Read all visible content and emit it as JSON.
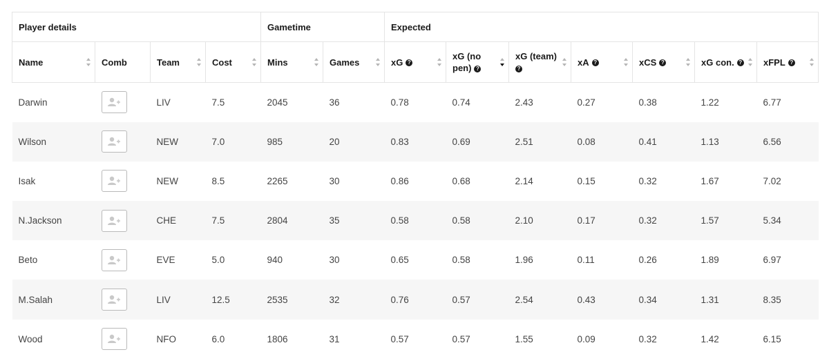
{
  "groups": {
    "player_details": "Player details",
    "gametime": "Gametime",
    "expected": "Expected"
  },
  "columns": {
    "name": "Name",
    "comb": "Comb",
    "team": "Team",
    "cost": "Cost",
    "mins": "Mins",
    "games": "Games",
    "xg": "xG",
    "xg_no_pen_line1": "xG (no",
    "xg_no_pen_line2": "pen)",
    "xg_team": "xG (team)",
    "xa": "xA",
    "xcs": "xCS",
    "xg_con": "xG con.",
    "xfpl": "xFPL"
  },
  "help_glyph": "?",
  "sorted_column": "xg_no_pen",
  "sort_direction": "descending",
  "icons": {
    "sort": "sort-arrows-icon",
    "help": "help-circle-icon",
    "comb": "add-player-icon"
  },
  "rows": [
    {
      "name": "Darwin",
      "team": "LIV",
      "cost": "7.5",
      "mins": "2045",
      "games": "36",
      "xg": "0.78",
      "xg_no_pen": "0.74",
      "xg_team": "2.43",
      "xa": "0.27",
      "xcs": "0.38",
      "xg_con": "1.22",
      "xfpl": "6.77"
    },
    {
      "name": "Wilson",
      "team": "NEW",
      "cost": "7.0",
      "mins": "985",
      "games": "20",
      "xg": "0.83",
      "xg_no_pen": "0.69",
      "xg_team": "2.51",
      "xa": "0.08",
      "xcs": "0.41",
      "xg_con": "1.13",
      "xfpl": "6.56"
    },
    {
      "name": "Isak",
      "team": "NEW",
      "cost": "8.5",
      "mins": "2265",
      "games": "30",
      "xg": "0.86",
      "xg_no_pen": "0.68",
      "xg_team": "2.14",
      "xa": "0.15",
      "xcs": "0.32",
      "xg_con": "1.67",
      "xfpl": "7.02"
    },
    {
      "name": "N.Jackson",
      "team": "CHE",
      "cost": "7.5",
      "mins": "2804",
      "games": "35",
      "xg": "0.58",
      "xg_no_pen": "0.58",
      "xg_team": "2.10",
      "xa": "0.17",
      "xcs": "0.32",
      "xg_con": "1.57",
      "xfpl": "5.34"
    },
    {
      "name": "Beto",
      "team": "EVE",
      "cost": "5.0",
      "mins": "940",
      "games": "30",
      "xg": "0.65",
      "xg_no_pen": "0.58",
      "xg_team": "1.96",
      "xa": "0.11",
      "xcs": "0.26",
      "xg_con": "1.89",
      "xfpl": "6.97"
    },
    {
      "name": "M.Salah",
      "team": "LIV",
      "cost": "12.5",
      "mins": "2535",
      "games": "32",
      "xg": "0.76",
      "xg_no_pen": "0.57",
      "xg_team": "2.54",
      "xa": "0.43",
      "xcs": "0.34",
      "xg_con": "1.31",
      "xfpl": "8.35"
    },
    {
      "name": "Wood",
      "team": "NFO",
      "cost": "6.0",
      "mins": "1806",
      "games": "31",
      "xg": "0.57",
      "xg_no_pen": "0.57",
      "xg_team": "1.55",
      "xa": "0.09",
      "xcs": "0.32",
      "xg_con": "1.42",
      "xfpl": "6.15"
    }
  ]
}
